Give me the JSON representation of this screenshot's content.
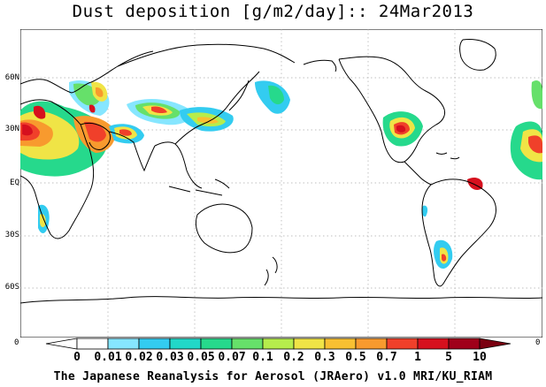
{
  "title": "Dust deposition [g/m2/day]:: 24Mar2013",
  "lat_labels": [
    "60N",
    "30N",
    "EQ",
    "30S",
    "60S"
  ],
  "colorbar": {
    "left_end_label": "0",
    "right_end_label": "0",
    "tick_labels": [
      "0",
      "0.01",
      "0.02",
      "0.03",
      "0.05",
      "0.07",
      "0.1",
      "0.2",
      "0.3",
      "0.5",
      "0.7",
      "1",
      "5",
      "10"
    ],
    "colors": [
      "#ffffff",
      "#ffffff",
      "#86e6ff",
      "#33ccf0",
      "#22d8c8",
      "#26d98c",
      "#66e06a",
      "#b6ed4c",
      "#f0e446",
      "#f8c032",
      "#f89a2e",
      "#f0402a",
      "#d6101e",
      "#a0001a",
      "#7a0010"
    ]
  },
  "credit": "The Japanese Reanalysis for Aerosol (JRAero) v1.0 MRI/KU_RIAM"
}
